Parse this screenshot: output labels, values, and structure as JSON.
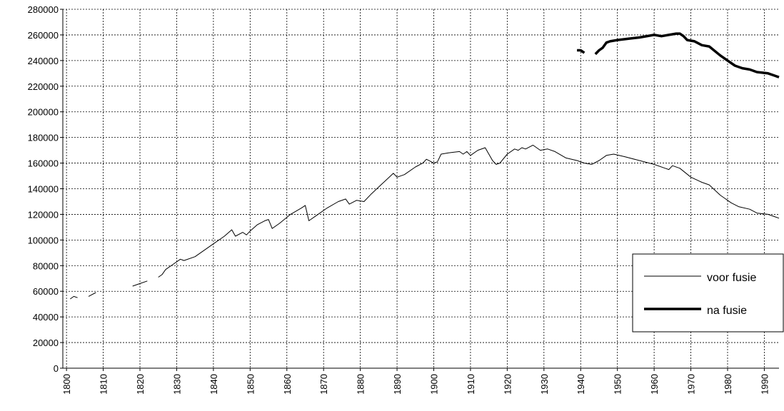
{
  "chart_data": {
    "type": "line",
    "xlim": [
      1799,
      1994
    ],
    "xticks": [
      1800,
      1810,
      1820,
      1830,
      1840,
      1850,
      1860,
      1870,
      1880,
      1890,
      1900,
      1910,
      1920,
      1930,
      1940,
      1950,
      1960,
      1970,
      1980,
      1990
    ],
    "ylim": [
      0,
      280000
    ],
    "yticks": [
      0,
      20000,
      40000,
      60000,
      80000,
      100000,
      120000,
      140000,
      160000,
      180000,
      200000,
      220000,
      240000,
      260000,
      280000
    ],
    "grid": true,
    "legend": "right",
    "series": [
      {
        "name": "voor fusie",
        "color": "#000000",
        "width": 1,
        "x": [
          1801,
          1802,
          1803,
          1804,
          1806,
          1808,
          1809,
          1811,
          1812,
          1815,
          1816,
          1818,
          1820,
          1822,
          1823,
          1825,
          1826,
          1827,
          1829,
          1831,
          1832,
          1835,
          1840,
          1843,
          1845,
          1846,
          1848,
          1849,
          1850,
          1852,
          1854,
          1855,
          1856,
          1858,
          1861,
          1864,
          1865,
          1866,
          1868,
          1871,
          1874,
          1876,
          1877,
          1879,
          1881,
          1883,
          1886,
          1889,
          1890,
          1892,
          1895,
          1897,
          1898,
          1900,
          1901,
          1902,
          1904,
          1907,
          1908,
          1909,
          1910,
          1912,
          1914,
          1916,
          1917,
          1918,
          1920,
          1922,
          1923,
          1924,
          1925,
          1927,
          1929,
          1931,
          1933,
          1936,
          1939,
          1941,
          1943,
          1945,
          1947,
          1949,
          1952,
          1956,
          1960,
          1963,
          1964,
          1965,
          1967,
          1970,
          1973,
          1975,
          1978,
          1981,
          1983,
          1986,
          1988,
          1991,
          1993,
          1994
        ],
        "values": [
          54000,
          56000,
          55000,
          null,
          56000,
          59000,
          null,
          60000,
          null,
          62000,
          null,
          64000,
          66000,
          68000,
          null,
          71000,
          73000,
          77000,
          81000,
          85000,
          84000,
          87000,
          97000,
          103000,
          108000,
          103000,
          106000,
          104000,
          107000,
          112000,
          115000,
          116000,
          109000,
          113000,
          120000,
          125000,
          127000,
          115000,
          119000,
          125000,
          130000,
          132000,
          128000,
          131000,
          130000,
          136000,
          144000,
          152000,
          149000,
          151000,
          157000,
          160000,
          163000,
          160000,
          161000,
          167000,
          168000,
          169000,
          167000,
          169000,
          166000,
          170000,
          172000,
          162000,
          159000,
          160000,
          167000,
          171000,
          170000,
          172000,
          171000,
          174000,
          170000,
          171000,
          169000,
          164000,
          162000,
          160000,
          159000,
          162000,
          166000,
          167000,
          165000,
          162000,
          159000,
          156000,
          155000,
          158000,
          156000,
          149000,
          145000,
          143000,
          135000,
          129000,
          126000,
          124000,
          121000,
          120000,
          118000,
          117000
        ]
      },
      {
        "name": "na fusie",
        "color": "#000000",
        "width": 3.5,
        "x": [
          1939,
          1940,
          1941,
          1942,
          1944,
          1945,
          1946,
          1947,
          1948,
          1950,
          1953,
          1956,
          1960,
          1962,
          1964,
          1966,
          1967,
          1968,
          1969,
          1971,
          1973,
          1975,
          1978,
          1980,
          1982,
          1984,
          1986,
          1988,
          1991,
          1993,
          1994
        ],
        "values": [
          248000,
          248000,
          246000,
          null,
          245000,
          248000,
          250000,
          254000,
          255000,
          256000,
          257000,
          258000,
          260000,
          259000,
          260000,
          261000,
          261000,
          259000,
          256000,
          255000,
          252000,
          251000,
          244000,
          240000,
          236000,
          234000,
          233000,
          231000,
          230000,
          228000,
          227000
        ]
      }
    ]
  }
}
